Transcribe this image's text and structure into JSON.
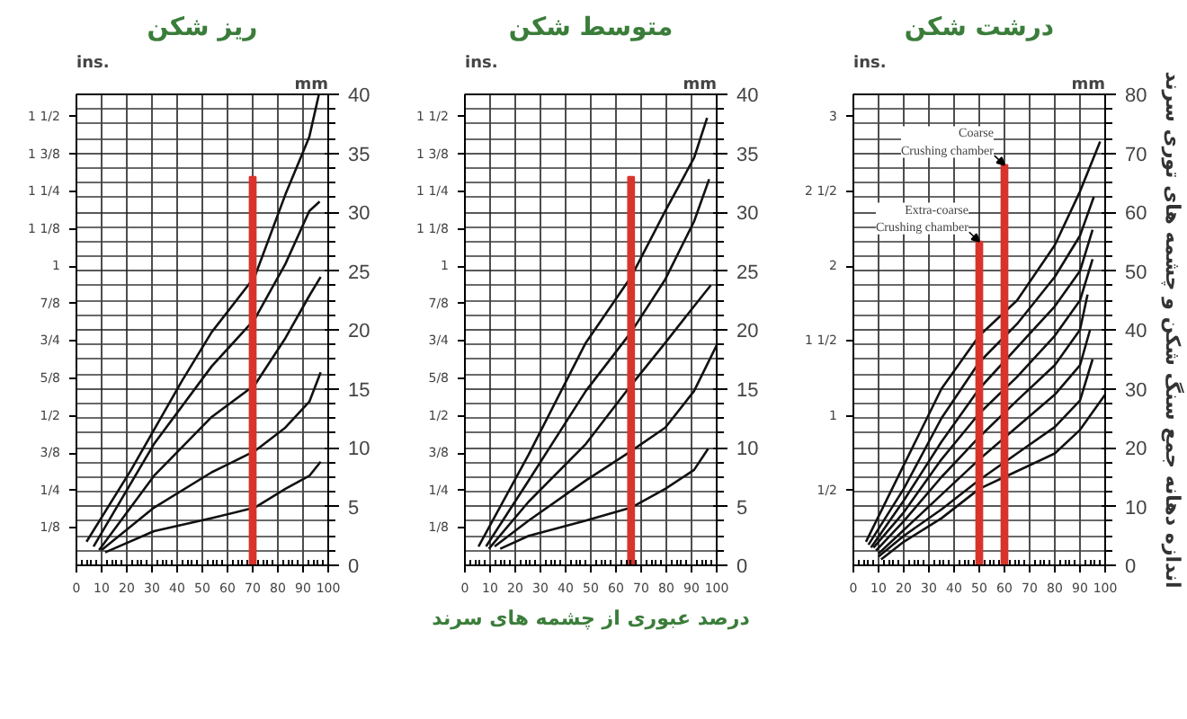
{
  "chart_data": [
    {
      "type": "line",
      "title": "ریز شکن",
      "ylabel": "mm",
      "y2label": "ins.",
      "xlim": [
        0,
        100
      ],
      "xticks": [
        0,
        10,
        20,
        30,
        40,
        50,
        60,
        70,
        80,
        90,
        100
      ],
      "ylim": [
        0,
        40
      ],
      "yticks": [
        0,
        5,
        10,
        15,
        20,
        25,
        30,
        35,
        40
      ],
      "y2lim": [
        0,
        1.575
      ],
      "y2ticks": [
        {
          "value": 0.125,
          "label": "1/8"
        },
        {
          "value": 0.25,
          "label": "1/4"
        },
        {
          "value": 0.375,
          "label": "3/8"
        },
        {
          "value": 0.5,
          "label": "1/2"
        },
        {
          "value": 0.625,
          "label": "5/8"
        },
        {
          "value": 0.75,
          "label": "3/4"
        },
        {
          "value": 0.875,
          "label": "7/8"
        },
        {
          "value": 1,
          "label": "1"
        },
        {
          "value": 1.125,
          "label": "1 1/8"
        },
        {
          "value": 1.25,
          "label": "1 1/4"
        },
        {
          "value": 1.375,
          "label": "1 3/8"
        },
        {
          "value": 1.5,
          "label": "1 1/2"
        }
      ],
      "grid": true,
      "series": [
        {
          "color": "#111111",
          "x": [
            4,
            21.7,
            42,
            53.7,
            70.8,
            83,
            92.5,
            96.3
          ],
          "values": [
            2.0,
            8.1,
            15.7,
            19.8,
            24.5,
            31.5,
            36.4,
            40
          ]
        },
        {
          "color": "#111111",
          "x": [
            6.8,
            30.8,
            53.7,
            70.8,
            83,
            92.5,
            96.6
          ],
          "values": [
            1.6,
            10.3,
            16.9,
            20.9,
            25.6,
            30.1,
            30.9
          ]
        },
        {
          "color": "#111111",
          "x": [
            9,
            30.8,
            53.7,
            70.8,
            83,
            92.5,
            97
          ],
          "values": [
            1.3,
            7.6,
            12.6,
            15.3,
            19.3,
            22.9,
            24.5
          ]
        },
        {
          "color": "#111111",
          "x": [
            10,
            30.8,
            53.7,
            70.8,
            83,
            92.5,
            97
          ],
          "values": [
            1.3,
            4.9,
            7.9,
            9.7,
            11.7,
            13.9,
            16.4
          ]
        },
        {
          "color": "#111111",
          "x": [
            11.4,
            30.8,
            53.7,
            70.8,
            83,
            92.5,
            97
          ],
          "values": [
            1.1,
            2.9,
            4.0,
            4.9,
            6.5,
            7.6,
            8.8
          ]
        },
        {
          "type": "bar",
          "color": "#d8342c",
          "x": [
            70
          ],
          "values": [
            33
          ]
        }
      ]
    },
    {
      "type": "line",
      "title": "متوسط شکن",
      "xlabel": "درصد عبوری از چشمه های سرند",
      "ylabel": "mm",
      "y2label": "ins.",
      "xlim": [
        0,
        100
      ],
      "xticks": [
        0,
        10,
        20,
        30,
        40,
        50,
        60,
        70,
        80,
        90,
        100
      ],
      "ylim": [
        0,
        40
      ],
      "yticks": [
        0,
        5,
        10,
        15,
        20,
        25,
        30,
        35,
        40
      ],
      "y2lim": [
        0,
        1.575
      ],
      "y2ticks": [
        {
          "value": 0.125,
          "label": "1/8"
        },
        {
          "value": 0.25,
          "label": "1/4"
        },
        {
          "value": 0.375,
          "label": "3/8"
        },
        {
          "value": 0.5,
          "label": "1/2"
        },
        {
          "value": 0.625,
          "label": "5/8"
        },
        {
          "value": 0.75,
          "label": "3/4"
        },
        {
          "value": 0.875,
          "label": "7/8"
        },
        {
          "value": 1,
          "label": "1"
        },
        {
          "value": 1.125,
          "label": "1 1/8"
        },
        {
          "value": 1.25,
          "label": "1 1/4"
        },
        {
          "value": 1.375,
          "label": "1 3/8"
        },
        {
          "value": 1.5,
          "label": "1 1/2"
        }
      ],
      "grid": true,
      "series": [
        {
          "color": "#111111",
          "x": [
            5.4,
            25.3,
            48,
            66,
            79.6,
            91,
            96.2
          ],
          "values": [
            1.6,
            9.4,
            18.9,
            24.5,
            30.1,
            34.6,
            38
          ]
        },
        {
          "color": "#111111",
          "x": [
            8.4,
            25.3,
            48,
            66,
            79.6,
            91,
            97
          ],
          "values": [
            1.6,
            7.2,
            14.8,
            19.8,
            24.3,
            29.2,
            32.8
          ]
        },
        {
          "color": "#111111",
          "x": [
            9.5,
            25.3,
            48,
            66,
            79.6,
            91,
            97.7
          ],
          "values": [
            1.4,
            5.4,
            10.3,
            15.3,
            18.9,
            22,
            23.8
          ]
        },
        {
          "color": "#111111",
          "x": [
            11.8,
            25.3,
            48,
            66,
            79.6,
            91,
            100
          ],
          "values": [
            1.6,
            3.8,
            7.2,
            9.7,
            11.7,
            14.8,
            18.7
          ]
        },
        {
          "color": "#111111",
          "x": [
            14,
            25.3,
            48,
            66,
            79.6,
            91,
            96.6
          ],
          "values": [
            1.4,
            2.5,
            3.8,
            4.9,
            6.5,
            8.1,
            9.9
          ]
        },
        {
          "type": "bar",
          "color": "#d8342c",
          "x": [
            66
          ],
          "values": [
            33
          ]
        }
      ]
    },
    {
      "type": "line",
      "title": "درشت شکن",
      "ylabel": "mm",
      "y2label": "ins.",
      "xlim": [
        0,
        100
      ],
      "xticks": [
        0,
        10,
        20,
        30,
        40,
        50,
        60,
        70,
        80,
        90,
        100
      ],
      "ylim": [
        0,
        80
      ],
      "yticks": [
        0,
        10,
        20,
        30,
        40,
        50,
        60,
        70,
        80
      ],
      "y2lim": [
        0,
        3.15
      ],
      "y2ticks": [
        {
          "value": 0.5,
          "label": "1/2"
        },
        {
          "value": 1,
          "label": "1"
        },
        {
          "value": 1.5,
          "label": "1 1/2"
        },
        {
          "value": 2,
          "label": "2"
        },
        {
          "value": 2.5,
          "label": "2 1/2"
        },
        {
          "value": 3,
          "label": "3"
        }
      ],
      "grid": true,
      "annotations": [
        "اندازه دهانه جمع سنگ شکن و چشمه های توری سرند",
        {
          "text": "Coarse\nCrushing chamber",
          "x": 60,
          "y": 68
        },
        {
          "text": "Extra-coarse\nCrushing chamber",
          "x": 50,
          "y": 55
        }
      ],
      "series": [
        {
          "color": "#111111",
          "x": [
            5,
            20,
            35,
            50,
            65,
            80,
            90,
            98
          ],
          "values": [
            4,
            17,
            30,
            39,
            45,
            54.4,
            63.5,
            72
          ]
        },
        {
          "color": "#111111",
          "x": [
            6,
            20,
            35,
            50,
            65,
            80,
            90,
            95.5
          ],
          "values": [
            3.5,
            13,
            25,
            34.5,
            41,
            49,
            56,
            62.6
          ]
        },
        {
          "color": "#111111",
          "x": [
            7,
            20,
            35,
            50,
            65,
            80,
            90,
            95
          ],
          "values": [
            3,
            11,
            21,
            30,
            37,
            44,
            50,
            57
          ]
        },
        {
          "color": "#111111",
          "x": [
            8,
            20,
            35,
            50,
            65,
            80,
            90,
            95
          ],
          "values": [
            3,
            9,
            18,
            25.8,
            32,
            39,
            45,
            52
          ]
        },
        {
          "color": "#111111",
          "x": [
            9,
            20,
            35,
            50,
            65,
            80,
            90,
            93
          ],
          "values": [
            2.5,
            7.5,
            15,
            21.8,
            28,
            34,
            40,
            46
          ]
        },
        {
          "color": "#111111",
          "x": [
            10,
            20,
            35,
            50,
            65,
            80,
            90,
            94
          ],
          "values": [
            2,
            6,
            12,
            18,
            23.5,
            29,
            34,
            40
          ]
        },
        {
          "color": "#111111",
          "x": [
            10,
            20,
            35,
            50,
            65,
            80,
            90,
            95
          ],
          "values": [
            1.5,
            5,
            9.5,
            14.5,
            19,
            23.5,
            28,
            35
          ]
        },
        {
          "color": "#111111",
          "x": [
            11,
            20,
            35,
            50,
            65,
            80,
            90,
            100
          ],
          "values": [
            1,
            4,
            8,
            13,
            16,
            19,
            23,
            29
          ]
        },
        {
          "type": "bar",
          "color": "#d8342c",
          "x": [
            50
          ],
          "values": [
            55
          ]
        },
        {
          "type": "bar",
          "color": "#d8342c",
          "x": [
            60
          ],
          "values": [
            68
          ]
        }
      ]
    }
  ]
}
